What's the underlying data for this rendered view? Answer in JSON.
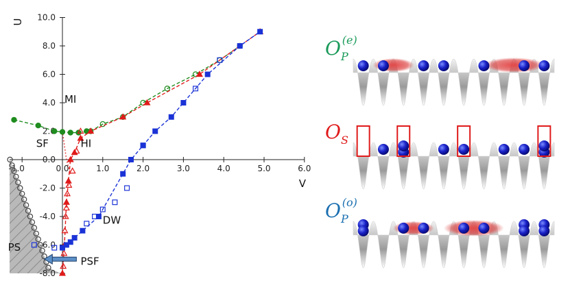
{
  "chart_data": {
    "type": "scatter",
    "xlabel": "V",
    "ylabel": "U",
    "xlim": [
      -1.2,
      6.0
    ],
    "ylim": [
      -8.0,
      10.0
    ],
    "xticks": [
      "-1.0",
      "0.0",
      "1.0",
      "2.0",
      "3.0",
      "4.0",
      "5.0",
      "6.0"
    ],
    "yticks": [
      "-8.0",
      "-6.0",
      "-4.0",
      "-2.0",
      "0.0",
      "2.0",
      "4.0",
      "6.0",
      "8.0",
      "10.0"
    ],
    "grid": false,
    "series": [
      {
        "color": "#1f8c1f",
        "marker": "filled-circle",
        "line": "dashed",
        "x": [
          -1.2,
          -0.6,
          -0.2,
          0.0,
          0.2,
          0.4,
          0.6
        ],
        "y": [
          2.8,
          2.4,
          2.0,
          1.95,
          1.9,
          1.9,
          2.0
        ]
      },
      {
        "color": "#1f8c1f",
        "marker": "open-circle",
        "line": "dashed",
        "x": [
          0.7,
          1.0,
          1.5,
          2.0,
          2.6,
          3.3,
          3.9,
          4.4
        ],
        "y": [
          2.0,
          2.5,
          3.0,
          4.0,
          5.0,
          6.0,
          7.0,
          8.0
        ]
      },
      {
        "color": "#e01a1a",
        "marker": "filled-triangle",
        "line": "dashed",
        "x": [
          0.0,
          0.05,
          0.1,
          0.15,
          0.2,
          0.3,
          0.45,
          0.7,
          1.5,
          2.1,
          3.4,
          4.9
        ],
        "y": [
          -8.0,
          -6.0,
          -3.0,
          -1.5,
          0.0,
          0.5,
          1.5,
          2.0,
          3.0,
          4.0,
          6.0,
          9.0
        ]
      },
      {
        "color": "#e01a1a",
        "marker": "open-triangle",
        "line": "none",
        "x": [
          0.02,
          0.04,
          0.06,
          0.08,
          0.1,
          0.12,
          0.16,
          0.25,
          0.35,
          0.45
        ],
        "y": [
          -7.5,
          -6.6,
          -5.0,
          -4.0,
          -3.4,
          -2.4,
          -1.8,
          -0.8,
          0.6,
          2.0
        ]
      },
      {
        "color": "#1a32d6",
        "marker": "filled-square",
        "line": "dashed",
        "x": [
          0.0,
          0.1,
          0.2,
          0.3,
          0.5,
          0.9,
          1.5,
          1.7,
          2.0,
          2.3,
          2.7,
          3.0,
          3.6,
          4.4,
          4.9
        ],
        "y": [
          -6.2,
          -6.0,
          -5.8,
          -5.5,
          -5.0,
          -4.0,
          -1.0,
          0.0,
          1.0,
          2.0,
          3.0,
          4.0,
          6.0,
          8.0,
          9.0
        ]
      },
      {
        "color": "#1a32d6",
        "marker": "open-square",
        "line": "none",
        "x": [
          -0.7,
          -0.2,
          0.6,
          0.8,
          1.0,
          1.3,
          1.6,
          2.0,
          3.3,
          3.9
        ],
        "y": [
          -6.0,
          -6.2,
          -4.5,
          -4.0,
          -3.5,
          -3.0,
          -2.0,
          1.0,
          5.0,
          7.0
        ]
      },
      {
        "color": "#444444",
        "marker": "open-circle",
        "line": "none",
        "x": [
          -1.3,
          -1.25,
          -1.2,
          -1.15,
          -1.1,
          -1.05,
          -1.0,
          -0.95,
          -0.9,
          -0.85,
          -0.8,
          -0.75,
          -0.7,
          -0.65,
          -0.6,
          -0.55,
          -0.5,
          -0.45,
          -0.4,
          -0.35
        ],
        "y": [
          0.0,
          -0.4,
          -0.8,
          -1.2,
          -1.6,
          -2.0,
          -2.4,
          -2.8,
          -3.2,
          -3.6,
          -4.0,
          -4.4,
          -4.8,
          -5.2,
          -5.6,
          -6.0,
          -6.4,
          -6.8,
          -7.2,
          -7.6
        ]
      }
    ],
    "dotted_boundary": {
      "color": "#e01a1a",
      "x": [
        0.0,
        0.1,
        0.2
      ],
      "y": [
        2.0,
        0.0,
        -1.0
      ]
    },
    "phase_labels": [
      "MI",
      "SF",
      "HI",
      "DW",
      "PS",
      "PSF"
    ],
    "panels": [
      {
        "name": "O_P^{(e)}",
        "base": "O",
        "sub": "P",
        "sup": "(e)",
        "color": "#1a9a5a"
      },
      {
        "name": "O_S",
        "base": "O",
        "sub": "S",
        "sup": "",
        "color": "#e01a1a"
      },
      {
        "name": "O_P^{(o)}",
        "base": "O",
        "sub": "P",
        "sup": "(o)",
        "color": "#1a6fb0"
      }
    ]
  }
}
